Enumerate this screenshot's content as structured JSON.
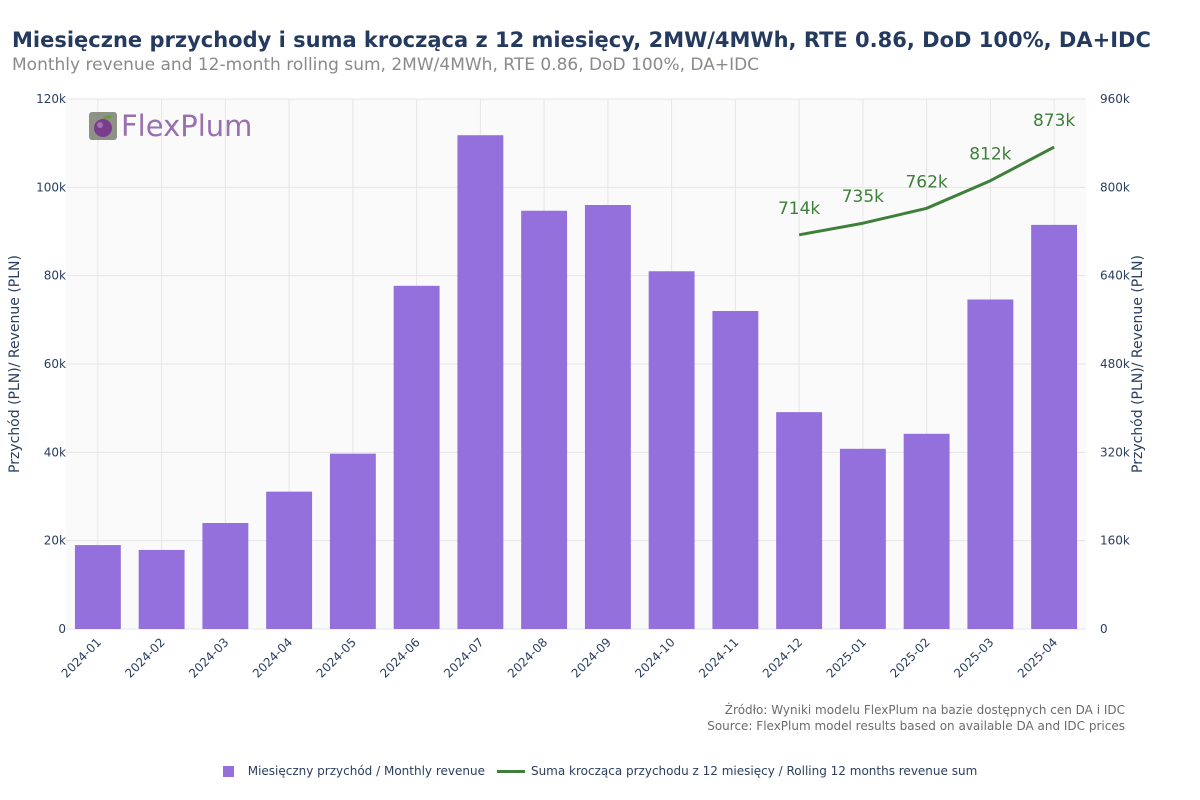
{
  "title": "Miesięczne przychody i suma krocząca z 12 miesięcy, 2MW/4MWh, RTE 0.86, DoD 100%, DA+IDC",
  "subtitle": "Monthly revenue and 12-month rolling sum, 2MW/4MWh, RTE 0.86, DoD 100%, DA+IDC",
  "logo": {
    "text": "FlexPlum",
    "icon": "plum-icon"
  },
  "source": {
    "line1": "Źródło: Wyniki modelu FlexPlum na bazie dostępnych cen DA i IDC",
    "line2": "Source: FlexPlum model results based on available DA and IDC prices"
  },
  "legend": {
    "bars": "Miesięczny przychód / Monthly revenue",
    "line": "Suma krocząca przychodu z 12 miesięcy / Rolling 12 months revenue sum"
  },
  "colors": {
    "bar": "#9370db",
    "line": "#3e7f3a",
    "plot_bg": "#fafafa",
    "grid": "#e6e6e6"
  },
  "chart_data": {
    "type": "bar",
    "categories": [
      "2024-01",
      "2024-02",
      "2024-03",
      "2024-04",
      "2024-05",
      "2024-06",
      "2024-07",
      "2024-08",
      "2024-09",
      "2024-10",
      "2024-11",
      "2024-12",
      "2025-01",
      "2025-02",
      "2025-03",
      "2025-04"
    ],
    "series": [
      {
        "name": "Miesięczny przychód / Monthly revenue",
        "type": "bar",
        "axis": "left",
        "values": [
          19000,
          17900,
          24000,
          31100,
          39700,
          77700,
          111800,
          94700,
          96000,
          81000,
          72000,
          49100,
          40800,
          44200,
          74600,
          91500
        ]
      },
      {
        "name": "Suma krocząca przychodu z 12 miesięcy / Rolling 12 months revenue sum",
        "type": "line",
        "axis": "right",
        "x": [
          "2024-12",
          "2025-01",
          "2025-02",
          "2025-03",
          "2025-04"
        ],
        "values": [
          714000,
          735000,
          762000,
          812000,
          873000
        ],
        "labels": [
          "714k",
          "735k",
          "762k",
          "812k",
          "873k"
        ]
      }
    ],
    "ylabel": "Przychód (PLN)/ Revenue (PLN)",
    "y2label": "Przychód (PLN)/ Revenue (PLN)",
    "ylim": [
      0,
      120000
    ],
    "y2lim": [
      0,
      960000
    ],
    "yticks": [
      "0",
      "20k",
      "40k",
      "60k",
      "80k",
      "100k",
      "120k"
    ],
    "y2ticks": [
      "0",
      "160k",
      "320k",
      "480k",
      "640k",
      "800k",
      "960k"
    ],
    "grid": true
  }
}
